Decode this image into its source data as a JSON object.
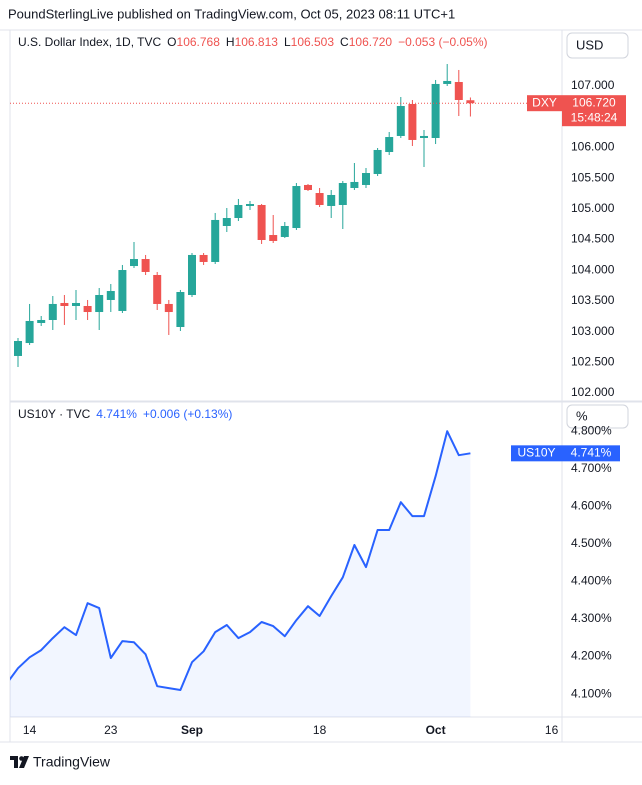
{
  "header": "PoundSterlingLive published on TradingView.com, Oct 05, 2023 08:11 UTC+1",
  "footer": "TradingView",
  "chart_data": [
    {
      "type": "candlestick",
      "legend": {
        "title": "U.S. Dollar Index, 1D, TVC",
        "open_label": "O",
        "open": "106.768",
        "high_label": "H",
        "high": "106.813",
        "low_label": "L",
        "low": "106.503",
        "close_label": "C",
        "close": "106.720",
        "change": "−0.053 (−0.05%)"
      },
      "currency": "USD",
      "price_tag": {
        "symbol": "DXY",
        "price": "106.720",
        "countdown": "15:48:24"
      },
      "up_color": "#26a69a",
      "down_color": "#ef5350",
      "open": [
        null,
        102.603,
        102.814,
        103.14,
        103.189,
        103.466,
        103.417,
        103.417,
        103.319,
        103.515,
        103.336,
        104.068,
        104.182,
        103.922,
        103.45,
        103.075,
        103.596,
        104.248,
        104.134,
        104.72,
        104.85,
        105.046,
        105.062,
        104.573,
        104.541,
        104.687,
        105.388,
        105.257,
        105.046,
        105.062,
        105.339,
        105.388,
        105.567,
        105.925,
        106.186,
        106.707,
        106.153,
        106.153,
        107.033,
        107.065,
        106.768,
        null,
        null,
        null,
        null,
        null,
        null,
        null
      ],
      "high": [
        null,
        102.896,
        103.45,
        103.254,
        103.58,
        103.596,
        103.678,
        103.515,
        103.71,
        103.775,
        104.085,
        104.459,
        104.248,
        103.971,
        103.515,
        103.678,
        104.28,
        104.28,
        104.932,
        105.013,
        105.16,
        105.127,
        105.078,
        104.899,
        104.785,
        105.42,
        105.404,
        105.339,
        105.306,
        105.453,
        105.746,
        105.665,
        105.99,
        106.251,
        106.821,
        106.772,
        106.283,
        107.098,
        107.358,
        107.261,
        106.813,
        null,
        null,
        null,
        null,
        null,
        null,
        null
      ],
      "low": [
        null,
        102.423,
        102.782,
        103.091,
        103.026,
        103.108,
        103.189,
        103.189,
        103.026,
        103.319,
        103.303,
        104.036,
        103.922,
        103.352,
        102.945,
        103.01,
        103.564,
        104.085,
        104.101,
        104.622,
        104.801,
        104.981,
        104.427,
        104.443,
        104.524,
        104.655,
        105.29,
        105.029,
        104.85,
        104.671,
        105.306,
        105.339,
        105.534,
        105.876,
        106.153,
        106.023,
        105.681,
        106.055,
        107.0,
        106.511,
        106.503,
        null,
        null,
        null,
        null,
        null,
        null,
        null
      ],
      "close": [
        null,
        102.847,
        103.173,
        103.189,
        103.45,
        103.417,
        103.466,
        103.319,
        103.596,
        103.661,
        104.003,
        104.182,
        103.971,
        103.45,
        103.319,
        103.645,
        104.248,
        104.134,
        104.818,
        104.85,
        105.062,
        105.078,
        104.492,
        104.476,
        104.72,
        105.371,
        105.306,
        105.062,
        105.225,
        105.42,
        105.437,
        105.583,
        105.958,
        106.169,
        106.674,
        106.121,
        106.186,
        107.033,
        107.082,
        106.772,
        106.72,
        null,
        null,
        null,
        null,
        null,
        null,
        null
      ],
      "ylim": [
        101.886,
        107.912
      ],
      "yticks": [
        {
          "value": 102,
          "label": "102.000"
        },
        {
          "value": 102.5,
          "label": "102.500"
        },
        {
          "value": 103,
          "label": "103.000"
        },
        {
          "value": 103.5,
          "label": "103.500"
        },
        {
          "value": 104,
          "label": "104.000"
        },
        {
          "value": 104.5,
          "label": "104.500"
        },
        {
          "value": 105,
          "label": "105.000"
        },
        {
          "value": 105.5,
          "label": "105.500"
        },
        {
          "value": 106,
          "label": "106.000"
        },
        {
          "value": 106.5,
          "label": "106.500"
        },
        {
          "value": 107,
          "label": "107.000"
        }
      ]
    },
    {
      "type": "line",
      "legend": {
        "title": "US10Y · TVC",
        "last": "4.741%",
        "change": "+0.006 (+0.13%)"
      },
      "unit": "%",
      "price_tag": {
        "symbol": "US10Y",
        "price": "4.741%"
      },
      "color": "#2962ff",
      "categories": [
        null,
        null,
        "14",
        null,
        null,
        null,
        null,
        null,
        null,
        "23",
        null,
        null,
        null,
        null,
        null,
        null,
        "Sep",
        null,
        null,
        null,
        null,
        null,
        null,
        null,
        null,
        null,
        null,
        "18",
        null,
        null,
        null,
        null,
        null,
        null,
        null,
        null,
        null,
        "Oct",
        null,
        null,
        null,
        null,
        null,
        null,
        null,
        null,
        null,
        "16"
      ],
      "values": [
        4.127,
        4.169,
        4.198,
        4.217,
        4.249,
        4.278,
        4.257,
        4.342,
        4.329,
        4.196,
        4.241,
        4.238,
        4.206,
        4.121,
        4.116,
        4.111,
        4.185,
        4.214,
        4.265,
        4.284,
        4.249,
        4.265,
        4.292,
        4.281,
        4.254,
        4.297,
        4.334,
        4.308,
        4.361,
        4.411,
        4.497,
        4.438,
        4.537,
        4.537,
        4.611,
        4.574,
        4.574,
        4.68,
        4.8,
        4.736,
        4.741,
        null,
        null,
        null,
        null,
        null,
        null,
        null
      ],
      "ylim": [
        4.039,
        4.875
      ],
      "yticks": [
        {
          "value": 4.1,
          "label": "4.100%"
        },
        {
          "value": 4.2,
          "label": "4.200%"
        },
        {
          "value": 4.3,
          "label": "4.300%"
        },
        {
          "value": 4.4,
          "label": "4.400%"
        },
        {
          "value": 4.5,
          "label": "4.500%"
        },
        {
          "value": 4.6,
          "label": "4.600%"
        },
        {
          "value": 4.7,
          "label": "4.700%"
        },
        {
          "value": 4.8,
          "label": "4.800%"
        }
      ]
    }
  ]
}
